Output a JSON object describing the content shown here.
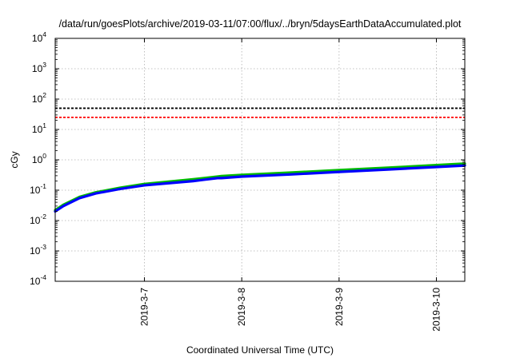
{
  "chart_data": {
    "type": "line",
    "title": "/data/run/goesPlots/archive/2019-03-11/07:00/flux/../bryn/5daysEarthDataAccumulated.plot",
    "xlabel": "Coordinated Universal Time (UTC)",
    "ylabel": "cGy",
    "y_scale": "log",
    "ylim": [
      0.0001,
      10000
    ],
    "y_ticks": [
      {
        "value": 0.0001,
        "base": "10",
        "exp": "-4"
      },
      {
        "value": 0.001,
        "base": "10",
        "exp": "-3"
      },
      {
        "value": 0.01,
        "base": "10",
        "exp": "-2"
      },
      {
        "value": 0.1,
        "base": "10",
        "exp": "-1"
      },
      {
        "value": 1,
        "base": "10",
        "exp": "0"
      },
      {
        "value": 10,
        "base": "10",
        "exp": "1"
      },
      {
        "value": 100,
        "base": "10",
        "exp": "2"
      },
      {
        "value": 1000,
        "base": "10",
        "exp": "3"
      },
      {
        "value": 10000,
        "base": "10",
        "exp": "4"
      }
    ],
    "xlim": [
      "2019-03-06 02:00",
      "2019-03-10 07:00"
    ],
    "x_ticks": [
      "2019-3-7",
      "2019-3-8",
      "2019-3-9",
      "2019-3-10"
    ],
    "grid": true,
    "thresholds": [
      {
        "value": 50,
        "color": "#000000",
        "style": "dashed"
      },
      {
        "value": 25,
        "color": "#ff0000",
        "style": "dashed"
      }
    ],
    "series": [
      {
        "color": "#00bb00",
        "x": [
          "2019-03-06 02:00",
          "2019-03-06 04:00",
          "2019-03-06 08:00",
          "2019-03-06 12:00",
          "2019-03-06 18:00",
          "2019-03-07 00:00",
          "2019-03-07 12:00",
          "2019-03-07 18:00",
          "2019-03-07 19:00",
          "2019-03-08 00:00",
          "2019-03-08 12:00",
          "2019-03-09 00:00",
          "2019-03-09 12:00",
          "2019-03-10 00:00",
          "2019-03-10 07:00"
        ],
        "y": [
          0.022,
          0.033,
          0.06,
          0.085,
          0.12,
          0.16,
          0.23,
          0.28,
          0.29,
          0.32,
          0.38,
          0.46,
          0.55,
          0.67,
          0.75
        ]
      },
      {
        "color": "#0000ff",
        "x": [
          "2019-03-06 02:00",
          "2019-03-06 04:00",
          "2019-03-06 08:00",
          "2019-03-06 12:00",
          "2019-03-06 18:00",
          "2019-03-07 00:00",
          "2019-03-07 12:00",
          "2019-03-07 18:00",
          "2019-03-07 19:00",
          "2019-03-08 00:00",
          "2019-03-08 12:00",
          "2019-03-09 00:00",
          "2019-03-09 12:00",
          "2019-03-10 00:00",
          "2019-03-10 07:00"
        ],
        "y": [
          0.02,
          0.03,
          0.055,
          0.078,
          0.11,
          0.145,
          0.2,
          0.25,
          0.25,
          0.28,
          0.33,
          0.4,
          0.48,
          0.58,
          0.65
        ]
      }
    ]
  }
}
